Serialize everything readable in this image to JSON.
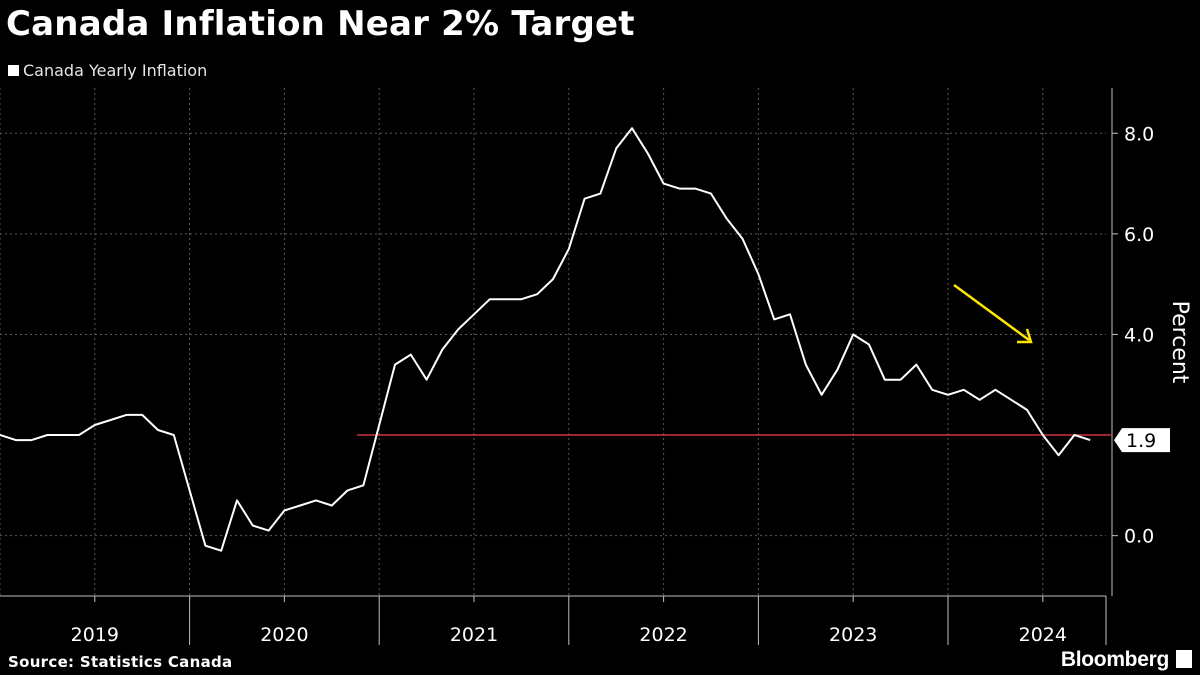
{
  "chart_data": {
    "type": "line",
    "title": "Canada Inflation Near 2% Target",
    "ylabel": "Percent",
    "ylim": [
      -1.2,
      8.9
    ],
    "yticks": [
      0.0,
      4.0,
      6.0,
      8.0
    ],
    "ytick_labels": [
      "0.0",
      "4.0",
      "6.0",
      "8.0"
    ],
    "xlim": [
      "2019-01",
      "2024-11"
    ],
    "year_labels": [
      "2019",
      "2020",
      "2021",
      "2022",
      "2023",
      "2024"
    ],
    "grid": true,
    "legend_position": "top-left",
    "series": [
      {
        "name": "Canada Yearly Inflation",
        "color": "#ffffff",
        "x": [
          "2019-01",
          "2019-02",
          "2019-03",
          "2019-04",
          "2019-05",
          "2019-06",
          "2019-07",
          "2019-08",
          "2019-09",
          "2019-10",
          "2019-11",
          "2019-12",
          "2020-01",
          "2020-02",
          "2020-03",
          "2020-04",
          "2020-05",
          "2020-06",
          "2020-07",
          "2020-08",
          "2020-09",
          "2020-10",
          "2020-11",
          "2020-12",
          "2021-01",
          "2021-02",
          "2021-03",
          "2021-04",
          "2021-05",
          "2021-06",
          "2021-07",
          "2021-08",
          "2021-09",
          "2021-10",
          "2021-11",
          "2021-12",
          "2022-01",
          "2022-02",
          "2022-03",
          "2022-04",
          "2022-05",
          "2022-06",
          "2022-07",
          "2022-08",
          "2022-09",
          "2022-10",
          "2022-11",
          "2022-12",
          "2023-01",
          "2023-02",
          "2023-03",
          "2023-04",
          "2023-05",
          "2023-06",
          "2023-07",
          "2023-08",
          "2023-09",
          "2023-10",
          "2023-11",
          "2023-12",
          "2024-01",
          "2024-02",
          "2024-03",
          "2024-04",
          "2024-05",
          "2024-06",
          "2024-07",
          "2024-08",
          "2024-09",
          "2024-10"
        ],
        "values": [
          2.0,
          1.9,
          1.9,
          2.0,
          2.0,
          2.0,
          2.2,
          2.3,
          2.4,
          2.4,
          2.1,
          2.0,
          0.9,
          -0.2,
          -0.3,
          0.7,
          0.2,
          0.1,
          0.5,
          0.6,
          0.7,
          0.6,
          0.9,
          1.0,
          2.2,
          3.4,
          3.6,
          3.1,
          3.7,
          4.1,
          4.4,
          4.7,
          4.7,
          4.7,
          4.8,
          5.1,
          5.7,
          6.7,
          6.8,
          7.7,
          8.1,
          7.6,
          7.0,
          6.9,
          6.9,
          6.8,
          6.3,
          5.9,
          5.2,
          4.3,
          4.4,
          3.4,
          2.8,
          3.3,
          4.0,
          3.8,
          3.1,
          3.1,
          3.4,
          2.9,
          2.8,
          2.9,
          2.7,
          2.9,
          2.7,
          2.5,
          2.0,
          1.6,
          2.0,
          1.9
        ],
        "end_label": "1.9"
      }
    ],
    "reference_line": {
      "value": 2.0,
      "color": "#cc3340"
    },
    "annotation": {
      "type": "arrow",
      "color": "#ffe600"
    }
  },
  "footer": {
    "source": "Source: Statistics Canada",
    "brand": "Bloomberg"
  }
}
